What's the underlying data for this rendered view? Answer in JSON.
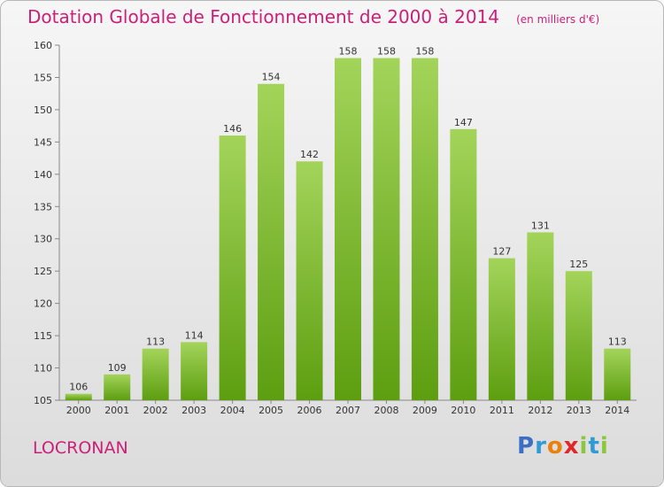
{
  "title": "Dotation Globale de Fonctionnement de 2000 à 2014",
  "unit": "(en milliers d'€)",
  "commune": "LOCRONAN",
  "logo": {
    "text": "Proxiti",
    "letters": [
      "P",
      "r",
      "o",
      "x",
      "i",
      "t",
      "i"
    ]
  },
  "colors": {
    "title": "#cc1f78",
    "bar_top": "#a3d45a",
    "bar_bottom": "#5d9e10",
    "logo": [
      "#3a6fc4",
      "#2e9ad6",
      "#e9820c",
      "#e0252b",
      "#8cc63f",
      "#2e9ad6",
      "#8cc63f"
    ]
  },
  "chart_data": {
    "type": "bar",
    "categories": [
      "2000",
      "2001",
      "2002",
      "2003",
      "2004",
      "2005",
      "2006",
      "2007",
      "2008",
      "2009",
      "2010",
      "2011",
      "2012",
      "2013",
      "2014"
    ],
    "values": [
      106,
      109,
      113,
      114,
      146,
      154,
      142,
      158,
      158,
      158,
      147,
      127,
      131,
      125,
      113
    ],
    "data_labels": [
      "106",
      "109",
      "113",
      "114",
      "146",
      "154",
      "142",
      "158",
      "158",
      "158",
      "147",
      "127",
      "131",
      "125",
      "113"
    ],
    "ylim": [
      105,
      160
    ],
    "yticks": [
      105,
      110,
      115,
      120,
      125,
      130,
      135,
      140,
      145,
      150,
      155,
      160
    ],
    "ytick_labels": [
      "105",
      "110",
      "115",
      "120",
      "125",
      "130",
      "135",
      "140",
      "145",
      "150",
      "155",
      "160"
    ],
    "xlabel": "",
    "ylabel": "",
    "grid": false,
    "legend": "none"
  }
}
